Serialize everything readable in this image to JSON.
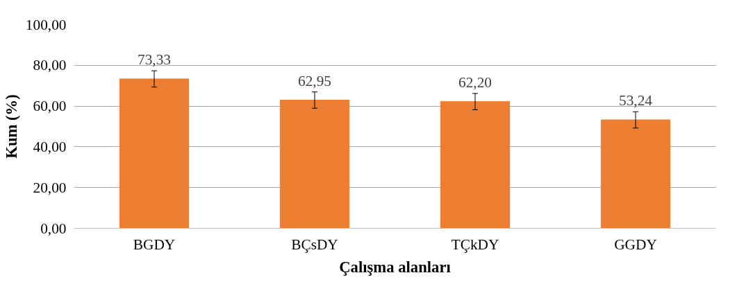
{
  "chart_data": {
    "type": "bar",
    "xlabel": "Çalışma alanları",
    "ylabel": "Kum (%)",
    "categories": [
      "BGDY",
      "BÇsDY",
      "TÇkDY",
      "GGDY"
    ],
    "values": [
      73.33,
      62.95,
      62.2,
      53.24
    ],
    "value_labels": [
      "73,33",
      "62,95",
      "62,20",
      "53,24"
    ],
    "errors": [
      4,
      4,
      4,
      4
    ],
    "color": "#ed7d31",
    "ylim": [
      0,
      100
    ],
    "yticks": [
      {
        "value": 0,
        "label": "0,00"
      },
      {
        "value": 20,
        "label": "20,00"
      },
      {
        "value": 40,
        "label": "40,00"
      },
      {
        "value": 60,
        "label": "60,00"
      },
      {
        "value": 80,
        "label": "80,00"
      },
      {
        "value": 100,
        "label": "100,00"
      }
    ],
    "grid": "y"
  }
}
